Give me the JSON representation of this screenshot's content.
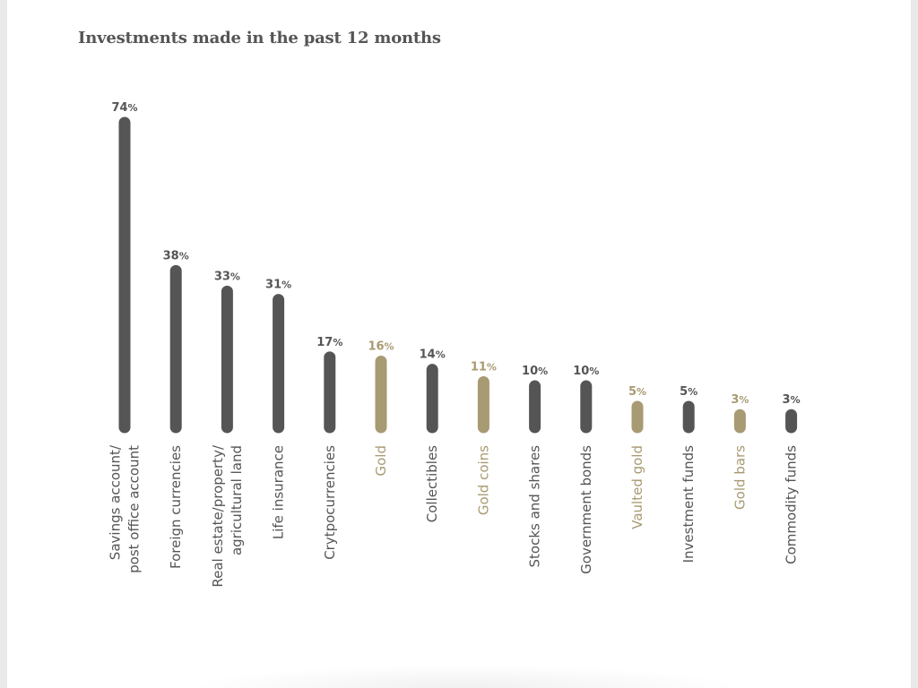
{
  "chart_data": {
    "type": "bar",
    "title": "Investments made in the past 12 months",
    "xlabel": "",
    "ylabel": "",
    "ylim": [
      0,
      74
    ],
    "grid": false,
    "value_suffix": "%",
    "categories": [
      [
        "Savings account/",
        "post office account"
      ],
      [
        "Foreign currencies"
      ],
      [
        "Real estate/property/",
        "agricultural land"
      ],
      [
        "Life insurance"
      ],
      [
        "Crytpocurrencies"
      ],
      [
        "Gold"
      ],
      [
        "Collectibles"
      ],
      [
        "Gold coins"
      ],
      [
        "Stocks and shares"
      ],
      [
        "Government bonds"
      ],
      [
        "Vaulted gold"
      ],
      [
        "Investment funds"
      ],
      [
        "Gold bars"
      ],
      [
        "Commodity funds"
      ]
    ],
    "values": [
      74,
      38,
      33,
      31,
      17,
      16,
      14,
      11,
      10,
      10,
      5,
      5,
      3,
      3
    ],
    "highlight": [
      false,
      false,
      false,
      false,
      false,
      true,
      false,
      true,
      false,
      false,
      true,
      false,
      true,
      false
    ],
    "colors": {
      "default": "#555555",
      "highlight": "#a89a72",
      "title": "#555555"
    }
  }
}
